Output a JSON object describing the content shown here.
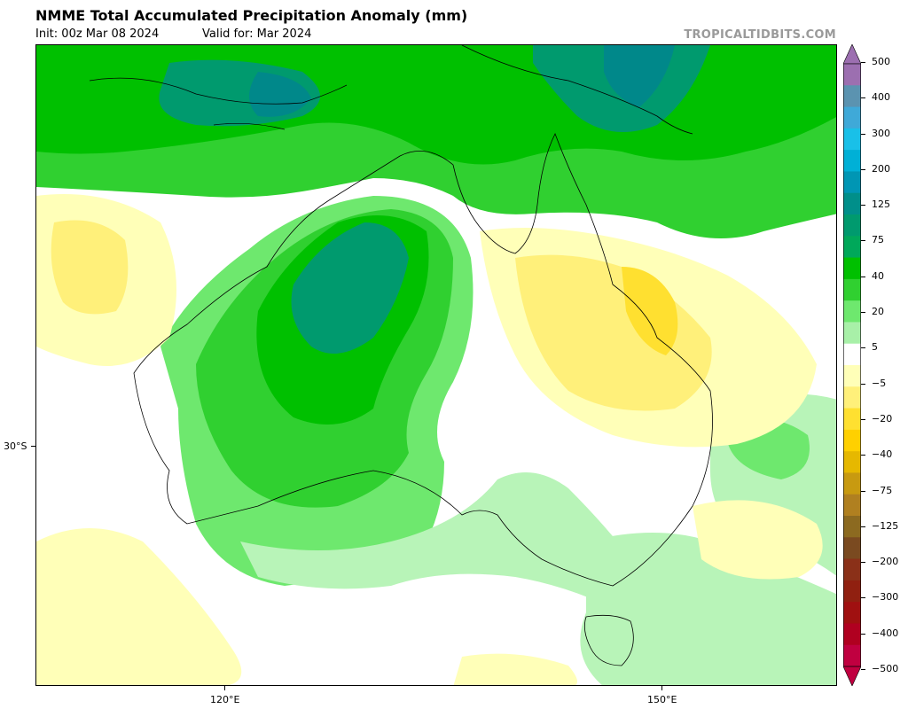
{
  "header": {
    "title": "NMME Total Accumulated Precipitation Anomaly (mm)",
    "init": "Init: 00z Mar 08 2024",
    "valid": "Valid for: Mar 2024",
    "brand": "TROPICALTIDBITS.COM"
  },
  "axes": {
    "lon_labels": [
      "120°E",
      "150°E"
    ],
    "lat_labels": [
      "30°S"
    ]
  },
  "colorbar": {
    "labels": [
      "500",
      "400",
      "300",
      "200",
      "125",
      "75",
      "40",
      "20",
      "5",
      "−5",
      "−20",
      "−40",
      "−75",
      "−125",
      "−200",
      "−300",
      "−400",
      "−500"
    ],
    "colors": [
      "#9c6fb0",
      "#5b93b0",
      "#3fa9d8",
      "#19c0e8",
      "#00b0d6",
      "#0096b4",
      "#008f8a",
      "#009a6e",
      "#00a85a",
      "#00c000",
      "#30d030",
      "#6ee86e",
      "#a8f0a8",
      "#ffffff",
      "#ffffb8",
      "#fff07a",
      "#ffe030",
      "#ffd000",
      "#e6b800",
      "#c89a10",
      "#b08020",
      "#8c6a20",
      "#7a4a20",
      "#8a3018",
      "#902010",
      "#a01010",
      "#b00020",
      "#c00040"
    ]
  },
  "colors": {
    "dark_green": "#00c000",
    "mid_green": "#30d030",
    "light_green": "#6ee86e",
    "pale_green": "#b8f4b8",
    "teal": "#009a6e",
    "deep_teal": "#00888a",
    "pale_yellow": "#ffffb8",
    "yellow": "#fff07a",
    "gold": "#ffe030"
  }
}
